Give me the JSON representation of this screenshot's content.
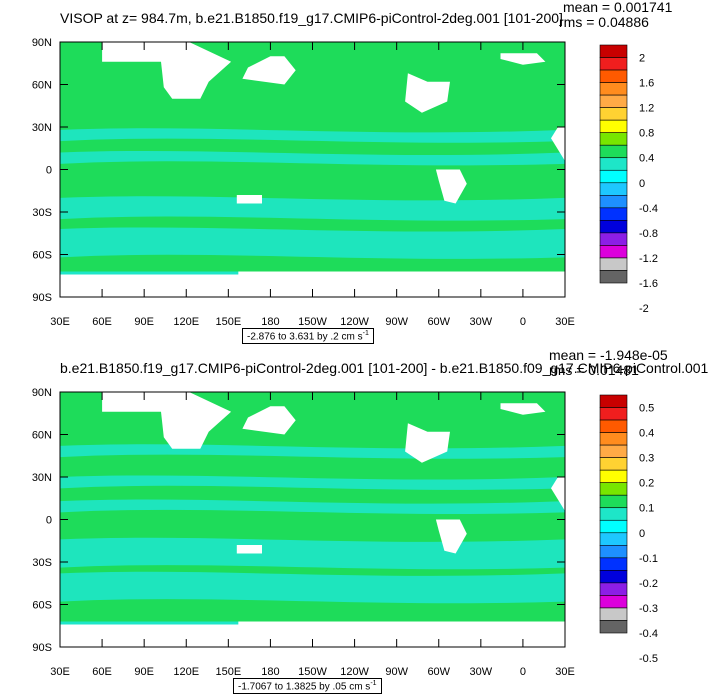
{
  "colors": {
    "palette_top_to_bottom": [
      "#c80000",
      "#f01e1e",
      "#ff5a00",
      "#ff8c1e",
      "#ffaa46",
      "#ffd232",
      "#ffff00",
      "#78e600",
      "#1edc5a",
      "#1ee6c8",
      "#00ffff",
      "#1ec8ff",
      "#1e90ff",
      "#0032ff",
      "#0000dc",
      "#8c1ee6",
      "#dc00dc",
      "#c8c8c8",
      "#646464"
    ],
    "ocean_main": "#1edc5a",
    "ocean_secondary": "#1ee6c8",
    "land": "#ffffff"
  },
  "chart_data": [
    {
      "type": "heatmap",
      "title": "VISOP at z= 984.7m, b.e21.B1850.f19_g17.CMIP6-piControl-2deg.001 [101-200]",
      "mean_text": "mean = 0.001741",
      "rms_text": "rms = 0.04886",
      "subtitle": "-2.876 to 3.631 by .2 cm s",
      "subtitle_exp": "-1",
      "y_ticks": [
        "90N",
        "60N",
        "30N",
        "0",
        "30S",
        "60S",
        "90S"
      ],
      "x_ticks": [
        "30E",
        "60E",
        "90E",
        "120E",
        "150E",
        "180",
        "150W",
        "120W",
        "90W",
        "60W",
        "30W",
        "0",
        "30E"
      ],
      "colorbar_labels": [
        "2",
        "1.6",
        "1.2",
        "0.8",
        "0.4",
        "0",
        "-0.4",
        "-0.8",
        "-1.2",
        "-1.6",
        "-2"
      ]
    },
    {
      "type": "heatmap",
      "title": "b.e21.B1850.f19_g17.CMIP6-piControl-2deg.001 [101-200] - b.e21.B1850.f09_g17.CMIP6-piControl.001",
      "mean_text": "mean = -1.948e-05",
      "rms_text": "rms = 0.01481",
      "subtitle": "-1.7067 to 1.3825 by .05 cm s",
      "subtitle_exp": "-1",
      "y_ticks": [
        "90N",
        "60N",
        "30N",
        "0",
        "30S",
        "60S",
        "90S"
      ],
      "x_ticks": [
        "30E",
        "60E",
        "90E",
        "120E",
        "150E",
        "180",
        "150W",
        "120W",
        "90W",
        "60W",
        "30W",
        "0",
        "30E"
      ],
      "colorbar_labels": [
        "0.5",
        "0.4",
        "0.3",
        "0.2",
        "0.1",
        "0",
        "-0.1",
        "-0.2",
        "-0.3",
        "-0.4",
        "-0.5"
      ]
    }
  ]
}
